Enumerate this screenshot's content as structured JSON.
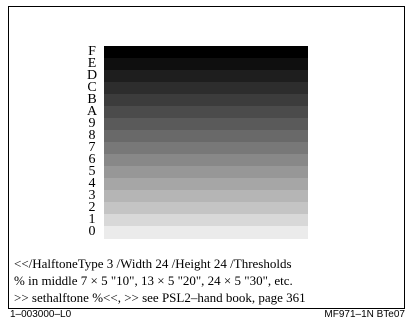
{
  "ramp_labels": [
    "F",
    "E",
    "D",
    "C",
    "B",
    "A",
    "9",
    "8",
    "7",
    "6",
    "5",
    "4",
    "3",
    "2",
    "1",
    "0"
  ],
  "ramp_colors": [
    "#000000",
    "#0f0f0f",
    "#1e1e1e",
    "#2d2d2d",
    "#3c3c3c",
    "#4b4b4b",
    "#5a5a5a",
    "#696969",
    "#787878",
    "#888888",
    "#979797",
    "#a6a6a6",
    "#b5b5b5",
    "#c4c4c4",
    "#d8d8d8",
    "#ebebeb"
  ],
  "caption": {
    "line1": "<</HalftoneType 3 /Width 24 /Height 24 /Thresholds",
    "line2": "% in middle 7 × 5 \"10\", 13 × 5 \"20\", 24 × 5 \"30\", etc.",
    "line3": ">> sethalftone  %<<, >> see PSL2–hand book, page 361"
  },
  "footer": {
    "left": "1–003000–L0",
    "right": "MF971–1N  BTe07"
  }
}
